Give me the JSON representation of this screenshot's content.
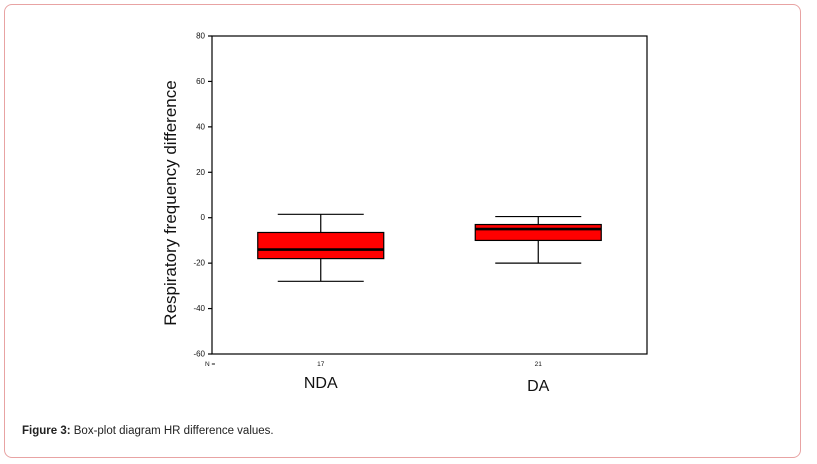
{
  "chart_data": {
    "type": "boxplot",
    "ylabel": "Respiratory frequency difference",
    "xlabel": "",
    "ylim": [
      -60,
      80
    ],
    "yticks": [
      -60,
      -40,
      -20,
      0,
      20,
      40,
      60,
      80
    ],
    "n_label": "N =",
    "categories": [
      "NDA",
      "DA"
    ],
    "n_values": [
      "17",
      "21"
    ],
    "boxes": [
      {
        "category": "NDA",
        "min": -28,
        "q1": -18,
        "median": -14,
        "q3": -6.5,
        "max": 1.5
      },
      {
        "category": "DA",
        "min": -20,
        "q1": -10,
        "median": -5,
        "q3": -3,
        "max": 0.5
      }
    ],
    "box_color": "#ff0000",
    "grid": false
  },
  "caption": {
    "label": "Figure 3:",
    "text": " Box-plot diagram HR difference values."
  }
}
